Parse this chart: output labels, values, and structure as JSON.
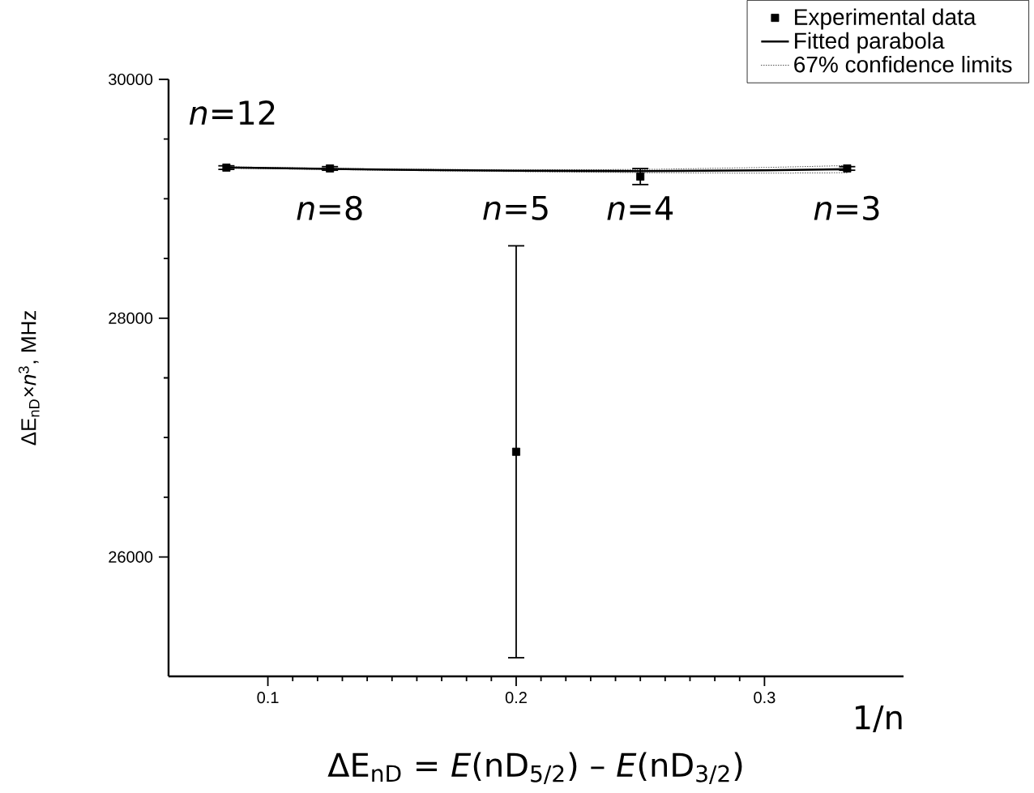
{
  "chart_data": {
    "type": "scatter",
    "xlabel": "1/n",
    "ylabel": "ΔE$_{nD}$×*n*$^{3}$, MHz",
    "xlim": [
      0.06,
      0.356
    ],
    "ylim": [
      25000,
      30000
    ],
    "xticks": [
      0.1,
      0.2,
      0.3
    ],
    "yticks": [
      26000,
      28000,
      30000
    ],
    "legend": "top right",
    "grid": false,
    "series": [
      {
        "name": "Experimental data",
        "marker": "square",
        "color": "#000000",
        "x": [
          0.0833,
          0.125,
          0.2,
          0.25,
          0.3333
        ],
        "values": [
          29261,
          29254,
          26881,
          29186,
          29254
        ],
        "errors": [
          15,
          15,
          1725,
          67,
          15
        ]
      },
      {
        "name": "Fitted parabola",
        "type": "line",
        "line_style": "solid",
        "color": "#000000",
        "x": [
          0.0833,
          0.125,
          0.15,
          0.2,
          0.25,
          0.3,
          0.3333
        ],
        "values": [
          29262,
          29250,
          29243,
          29235,
          29232,
          29238,
          29248
        ]
      },
      {
        "name": "67% confidence limits",
        "type": "line",
        "line_style": "dotted",
        "color": "#000000",
        "x": [
          0.0833,
          0.125,
          0.15,
          0.2,
          0.25,
          0.3,
          0.3333
        ],
        "values": [
          29268,
          29255,
          29248,
          29242,
          29245,
          29262,
          29278
        ]
      },
      {
        "type": "line",
        "line_style": "dotted",
        "color": "#000000",
        "x": [
          0.0833,
          0.125,
          0.15,
          0.2,
          0.25,
          0.3,
          0.3333
        ],
        "values": [
          29256,
          29245,
          29238,
          29228,
          29219,
          29214,
          29218
        ]
      }
    ],
    "annotations": [
      {
        "text": "*n*=12",
        "x": 0.0833,
        "y": 29261
      },
      {
        "text": "*n*=8",
        "x": 0.125,
        "y": 29254
      },
      {
        "text": "*n*=5",
        "x": 0.2,
        "y": 28606
      },
      {
        "text": "*n*=4",
        "x": 0.25,
        "y": 29186
      },
      {
        "text": "*n*=3",
        "x": 0.3333,
        "y": 29254
      },
      "ΔE$_{nD}$ = *E*(nD$_{5/2}$) – *E*(nD$_{3/2}$)"
    ]
  }
}
